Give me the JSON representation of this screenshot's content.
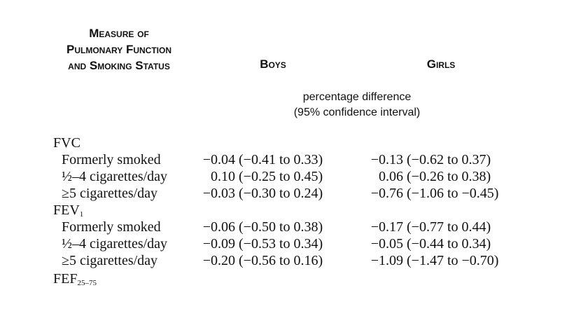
{
  "header": {
    "measure_line1": "Measure of",
    "measure_line2": "Pulmonary Function",
    "measure_line3": "and Smoking Status",
    "boys": "Boys",
    "girls": "Girls"
  },
  "subheader": {
    "line1": "percentage difference",
    "line2": "(95% confidence interval)"
  },
  "groups": [
    {
      "name": "FVC",
      "subscript": "",
      "rows": [
        {
          "label": "Formerly smoked",
          "boys_est": "−0.04",
          "boys_ci": "(−0.41 to 0.33)",
          "girls_est": "−0.13",
          "girls_ci": "(−0.62 to 0.37)"
        },
        {
          "label": "½–4 cigarettes/day",
          "boys_est": "0.10",
          "boys_ci": "(−0.25 to 0.45)",
          "girls_est": "0.06",
          "girls_ci": "(−0.26 to 0.38)"
        },
        {
          "label": "≥5 cigarettes/day",
          "boys_est": "−0.03",
          "boys_ci": "(−0.30 to 0.24)",
          "girls_est": "−0.76",
          "girls_ci": "(−1.06 to −0.45)"
        }
      ]
    },
    {
      "name": "FEV",
      "subscript": "1",
      "rows": [
        {
          "label": "Formerly smoked",
          "boys_est": "−0.06",
          "boys_ci": "(−0.50 to 0.38)",
          "girls_est": "−0.17",
          "girls_ci": "(−0.77 to 0.44)"
        },
        {
          "label": "½–4 cigarettes/day",
          "boys_est": "−0.09",
          "boys_ci": "(−0.53 to 0.34)",
          "girls_est": "−0.05",
          "girls_ci": "(−0.44 to 0.34)"
        },
        {
          "label": "≥5 cigarettes/day",
          "boys_est": "−0.20",
          "boys_ci": "(−0.56 to 0.16)",
          "girls_est": "−1.09",
          "girls_ci": "(−1.47 to −0.70)"
        }
      ]
    },
    {
      "name": "FEF",
      "subscript": "25–75",
      "rows": []
    }
  ]
}
